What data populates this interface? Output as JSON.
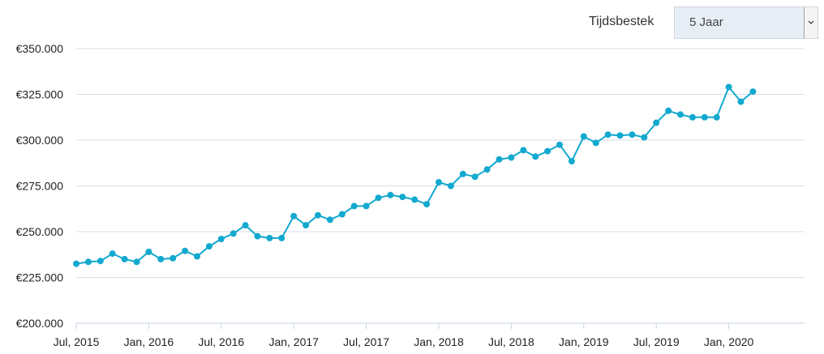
{
  "controls": {
    "timeframe_label": "Tijdsbestek",
    "timeframe_value": "5 Jaar",
    "dropdown_icon": "chevron-down-icon"
  },
  "colors": {
    "line": "#12a9cf",
    "grid": "#d9dee6",
    "axis": "#c7d3e3",
    "select_bg": "#e8eef5"
  },
  "chart_data": {
    "type": "line",
    "title": "",
    "xlabel": "",
    "ylabel": "",
    "ylim": [
      200000,
      350000
    ],
    "yticks": [
      200000,
      225000,
      250000,
      275000,
      300000,
      325000,
      350000
    ],
    "ytick_labels": [
      "€200.000",
      "€225.000",
      "€250.000",
      "€275.000",
      "€300.000",
      "€325.000",
      "€350.000"
    ],
    "xticks": [
      "2015-07",
      "2016-01",
      "2016-07",
      "2017-01",
      "2017-07",
      "2018-01",
      "2018-07",
      "2019-01",
      "2019-07",
      "2020-01"
    ],
    "xtick_labels": [
      "Jul, 2015",
      "Jan, 2016",
      "Jul, 2016",
      "Jan, 2017",
      "Jul, 2017",
      "Jan, 2018",
      "Jul, 2018",
      "Jan, 2019",
      "Jul, 2019",
      "Jan, 2020"
    ],
    "x": [
      "2015-07",
      "2015-08",
      "2015-09",
      "2015-10",
      "2015-11",
      "2015-12",
      "2016-01",
      "2016-02",
      "2016-03",
      "2016-04",
      "2016-05",
      "2016-06",
      "2016-07",
      "2016-08",
      "2016-09",
      "2016-10",
      "2016-11",
      "2016-12",
      "2017-01",
      "2017-02",
      "2017-03",
      "2017-04",
      "2017-05",
      "2017-06",
      "2017-07",
      "2017-08",
      "2017-09",
      "2017-10",
      "2017-11",
      "2017-12",
      "2018-01",
      "2018-02",
      "2018-03",
      "2018-04",
      "2018-05",
      "2018-06",
      "2018-07",
      "2018-08",
      "2018-09",
      "2018-10",
      "2018-11",
      "2018-12",
      "2019-01",
      "2019-02",
      "2019-03",
      "2019-04",
      "2019-05",
      "2019-06",
      "2019-07",
      "2019-08",
      "2019-09",
      "2019-10",
      "2019-11",
      "2019-12",
      "2020-01",
      "2020-02",
      "2020-03"
    ],
    "series": [
      {
        "values": [
          232500,
          233500,
          234000,
          238000,
          235000,
          233500,
          239000,
          235000,
          235500,
          239500,
          236500,
          242000,
          246000,
          249000,
          253500,
          247500,
          246500,
          246500,
          258500,
          253500,
          259000,
          256500,
          259500,
          264000,
          264000,
          268500,
          270000,
          269000,
          267500,
          265000,
          277000,
          275000,
          281500,
          280000,
          284000,
          289500,
          290500,
          294500,
          291000,
          294000,
          297500,
          288500,
          302000,
          298500,
          303000,
          302500,
          303000,
          301500,
          309500,
          316000,
          314000,
          312500,
          312500,
          312500,
          329000,
          321000,
          326500
        ]
      }
    ],
    "grid": true,
    "markers": true
  }
}
